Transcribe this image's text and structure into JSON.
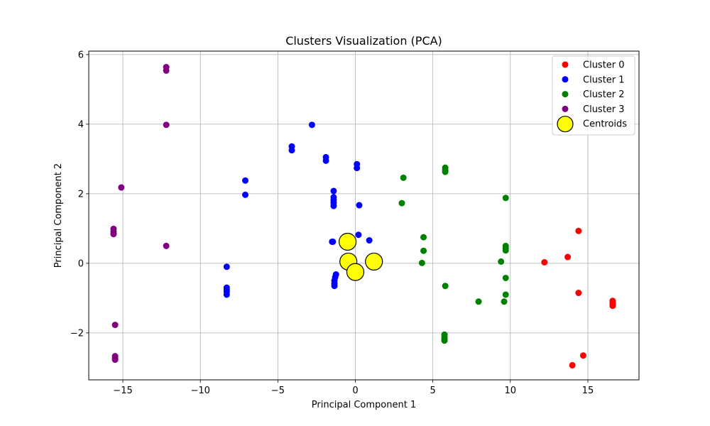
{
  "chart_data": {
    "type": "scatter",
    "title": "Clusters Visualization (PCA)",
    "xlabel": "Principal Component 1",
    "ylabel": "Principal Component 2",
    "xlim": [
      -17.2,
      18.3
    ],
    "ylim": [
      -3.35,
      6.1
    ],
    "xticks": [
      -15,
      -10,
      -5,
      0,
      5,
      10,
      15
    ],
    "yticks": [
      -2,
      0,
      2,
      4,
      6
    ],
    "xtick_labels": [
      "−15",
      "−10",
      "−5",
      "0",
      "5",
      "10",
      "15"
    ],
    "ytick_labels": [
      "−2",
      "0",
      "2",
      "4",
      "6"
    ],
    "grid": true,
    "legend_position": "top-right",
    "series": [
      {
        "name": "Cluster 0",
        "color": "#ff0000",
        "points": [
          [
            14.4,
            0.93
          ],
          [
            13.7,
            0.18
          ],
          [
            12.2,
            0.03
          ],
          [
            14.4,
            -0.85
          ],
          [
            16.6,
            -1.08
          ],
          [
            16.6,
            -1.15
          ],
          [
            16.6,
            -1.22
          ],
          [
            16.6,
            -1.18
          ],
          [
            14.7,
            -2.65
          ],
          [
            14.0,
            -2.93
          ]
        ]
      },
      {
        "name": "Cluster 1",
        "color": "#0000ff",
        "points": [
          [
            -2.8,
            3.98
          ],
          [
            -4.1,
            3.36
          ],
          [
            -4.1,
            3.25
          ],
          [
            -1.9,
            3.05
          ],
          [
            -1.9,
            2.95
          ],
          [
            0.1,
            2.85
          ],
          [
            0.1,
            2.74
          ],
          [
            -7.1,
            2.38
          ],
          [
            -7.1,
            1.97
          ],
          [
            -1.4,
            2.08
          ],
          [
            -1.4,
            1.9
          ],
          [
            -1.4,
            1.82
          ],
          [
            -1.4,
            1.74
          ],
          [
            -1.4,
            1.65
          ],
          [
            0.25,
            1.67
          ],
          [
            0.2,
            0.82
          ],
          [
            0.9,
            0.66
          ],
          [
            -1.45,
            0.62
          ],
          [
            -1.5,
            0.62
          ],
          [
            -1.25,
            -0.32
          ],
          [
            -1.3,
            -0.4
          ],
          [
            -1.35,
            -0.5
          ],
          [
            -1.35,
            -0.58
          ],
          [
            -1.35,
            -0.65
          ],
          [
            -8.3,
            -0.1
          ],
          [
            -8.3,
            -0.7
          ],
          [
            -8.3,
            -0.76
          ],
          [
            -8.3,
            -0.82
          ],
          [
            -8.3,
            -0.9
          ]
        ]
      },
      {
        "name": "Cluster 2",
        "color": "#008000",
        "points": [
          [
            5.8,
            2.75
          ],
          [
            5.8,
            2.68
          ],
          [
            5.8,
            2.63
          ],
          [
            3.1,
            2.46
          ],
          [
            9.7,
            1.88
          ],
          [
            3.0,
            1.73
          ],
          [
            4.4,
            0.75
          ],
          [
            9.7,
            0.5
          ],
          [
            9.7,
            0.43
          ],
          [
            9.7,
            0.37
          ],
          [
            4.4,
            0.36
          ],
          [
            9.4,
            0.05
          ],
          [
            4.3,
            0.01
          ],
          [
            9.7,
            -0.42
          ],
          [
            5.8,
            -0.65
          ],
          [
            9.7,
            -0.9
          ],
          [
            9.6,
            -1.1
          ],
          [
            7.95,
            -1.1
          ],
          [
            5.75,
            -2.05
          ],
          [
            5.75,
            -2.12
          ],
          [
            5.75,
            -2.18
          ],
          [
            5.75,
            -2.22
          ]
        ]
      },
      {
        "name": "Cluster 3",
        "color": "#800080",
        "points": [
          [
            -12.2,
            5.64
          ],
          [
            -12.2,
            5.54
          ],
          [
            -12.2,
            3.98
          ],
          [
            -15.1,
            2.18
          ],
          [
            -15.6,
            0.99
          ],
          [
            -15.6,
            0.92
          ],
          [
            -15.6,
            0.86
          ],
          [
            -15.6,
            0.84
          ],
          [
            -12.2,
            0.5
          ],
          [
            -15.5,
            -1.77
          ],
          [
            -15.5,
            -2.67
          ],
          [
            -15.5,
            -2.72
          ],
          [
            -15.5,
            -2.77
          ]
        ]
      }
    ],
    "centroids": {
      "name": "Centroids",
      "color": "#ffff00",
      "edge_color": "#000000",
      "points": [
        [
          -0.5,
          0.62
        ],
        [
          -0.45,
          0.05
        ],
        [
          0.0,
          -0.25
        ],
        [
          1.2,
          0.05
        ]
      ]
    }
  }
}
